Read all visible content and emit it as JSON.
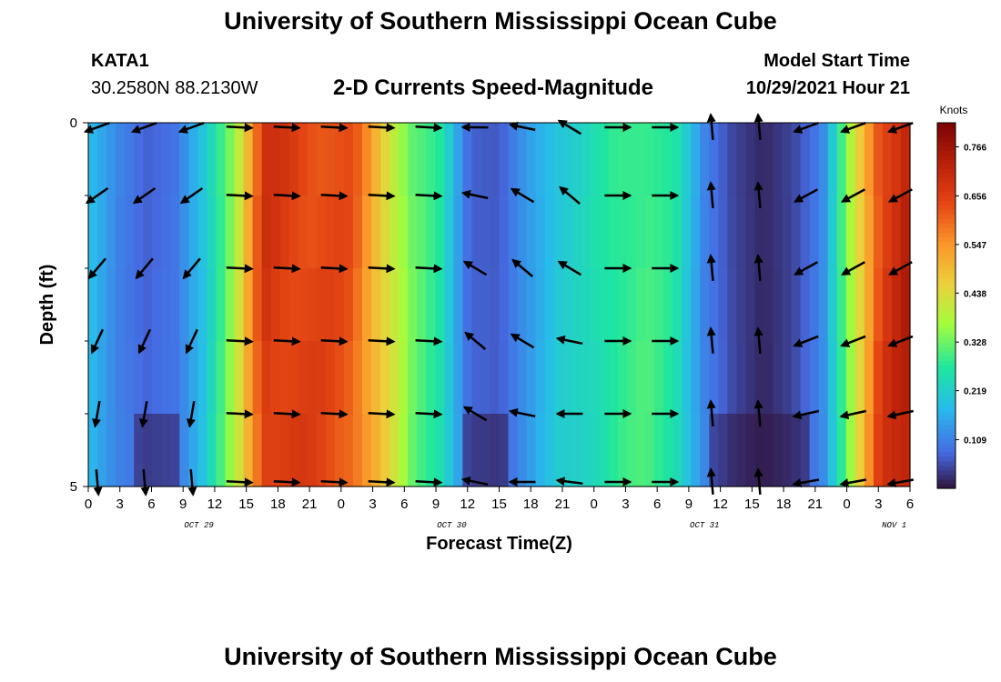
{
  "header": {
    "title": "University of Southern Mississippi Ocean Cube",
    "station": "KATA1",
    "coords": "30.2580N  88.2130W",
    "chart_title": "2-D Currents Speed-Magnitude",
    "model_start_label": "Model Start Time",
    "model_start_value": "10/29/2021 Hour 21"
  },
  "footer": {
    "title": "University of Southern Mississippi Ocean Cube"
  },
  "chart_data": {
    "type": "heatmap",
    "title": "2-D Currents Speed-Magnitude",
    "xlabel": "Forecast Time(Z)",
    "ylabel": "Depth (ft)",
    "x_tick_labels": [
      "0",
      "3",
      "6",
      "9",
      "12",
      "15",
      "18",
      "21",
      "0",
      "3",
      "6",
      "9",
      "12",
      "15",
      "18",
      "21",
      "0",
      "3",
      "6",
      "9",
      "12",
      "15",
      "18",
      "21",
      "0",
      "3",
      "6"
    ],
    "x_day_labels": [
      "OCT 29",
      "OCT 30",
      "OCT 31",
      "NOV 1"
    ],
    "y_tick_labels": [
      "0",
      "5"
    ],
    "ylim": [
      0,
      5
    ],
    "colorbar": {
      "unit": "Knots",
      "ticks": [
        "0.766",
        "0.656",
        "0.547",
        "0.438",
        "0.328",
        "0.219",
        "0.109"
      ],
      "range": [
        0,
        0.82
      ]
    },
    "speed_profile_knots": [
      0.2,
      0.12,
      0.08,
      0.1,
      0.22,
      0.4,
      0.72,
      0.7,
      0.68,
      0.66,
      0.5,
      0.35,
      0.28,
      0.08,
      0.07,
      0.15,
      0.22,
      0.25,
      0.3,
      0.32,
      0.28,
      0.12,
      0.05,
      0.02,
      0.05,
      0.12,
      0.4,
      0.7,
      0.78
    ]
  }
}
